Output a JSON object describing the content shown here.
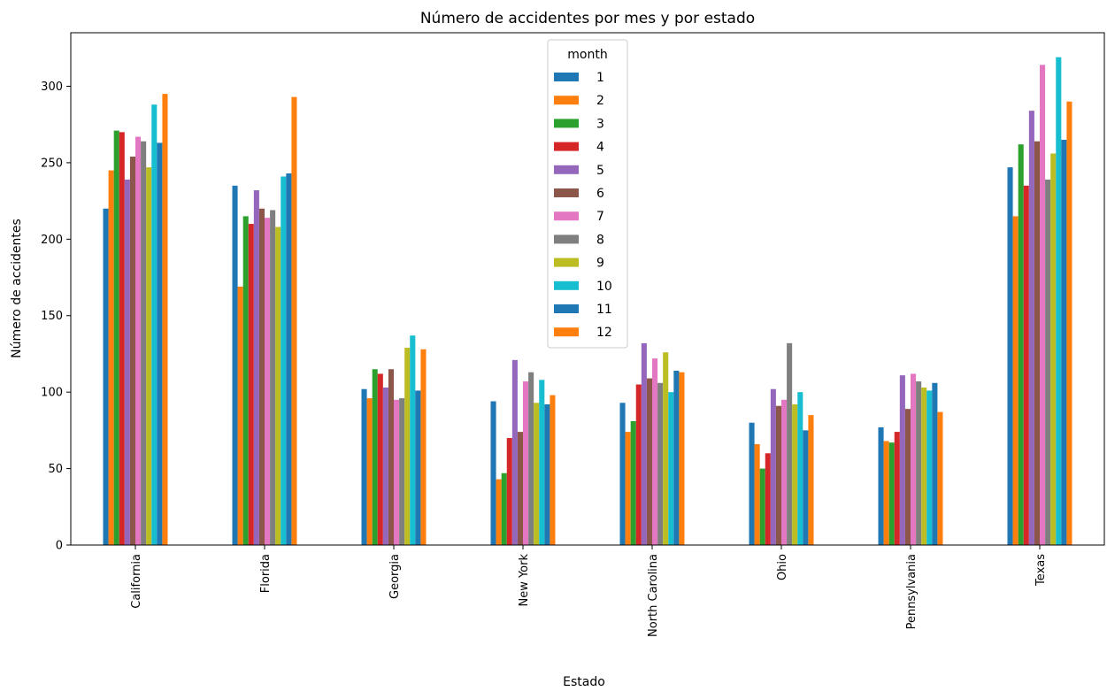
{
  "chart_data": {
    "type": "bar",
    "title": "Número de accidentes por mes y por estado",
    "xlabel": "Estado",
    "ylabel": "Número de accidentes",
    "ylim": [
      0,
      335
    ],
    "yticks": [
      0,
      50,
      100,
      150,
      200,
      250,
      300
    ],
    "grid": false,
    "legend": {
      "title": "month",
      "placement": "top-center"
    },
    "categories": [
      "California",
      "Florida",
      "Georgia",
      "New York",
      "North Carolina",
      "Ohio",
      "Pennsylvania",
      "Texas"
    ],
    "series": [
      {
        "name": "1",
        "color": "#1f77b4",
        "values": [
          220,
          235,
          102,
          94,
          93,
          80,
          77,
          247
        ]
      },
      {
        "name": "2",
        "color": "#ff7f0e",
        "values": [
          245,
          169,
          96,
          43,
          74,
          66,
          68,
          215
        ]
      },
      {
        "name": "3",
        "color": "#2ca02c",
        "values": [
          271,
          215,
          115,
          47,
          81,
          50,
          67,
          262
        ]
      },
      {
        "name": "4",
        "color": "#d62728",
        "values": [
          270,
          210,
          112,
          70,
          105,
          60,
          74,
          235
        ]
      },
      {
        "name": "5",
        "color": "#9467bd",
        "values": [
          239,
          232,
          103,
          121,
          132,
          102,
          111,
          284
        ]
      },
      {
        "name": "6",
        "color": "#8c564b",
        "values": [
          254,
          220,
          115,
          74,
          109,
          91,
          89,
          264
        ]
      },
      {
        "name": "7",
        "color": "#e377c2",
        "values": [
          267,
          214,
          95,
          107,
          122,
          95,
          112,
          314
        ]
      },
      {
        "name": "8",
        "color": "#7f7f7f",
        "values": [
          264,
          219,
          96,
          113,
          106,
          132,
          107,
          239
        ]
      },
      {
        "name": "9",
        "color": "#bcbd22",
        "values": [
          247,
          208,
          129,
          93,
          126,
          92,
          103,
          256
        ]
      },
      {
        "name": "10",
        "color": "#17becf",
        "values": [
          288,
          241,
          137,
          108,
          100,
          100,
          101,
          319
        ]
      },
      {
        "name": "11",
        "color": "#1f77b4",
        "values": [
          263,
          243,
          101,
          92,
          114,
          75,
          106,
          265
        ]
      },
      {
        "name": "12",
        "color": "#ff7f0e",
        "values": [
          295,
          293,
          128,
          98,
          113,
          85,
          87,
          290
        ]
      }
    ]
  }
}
